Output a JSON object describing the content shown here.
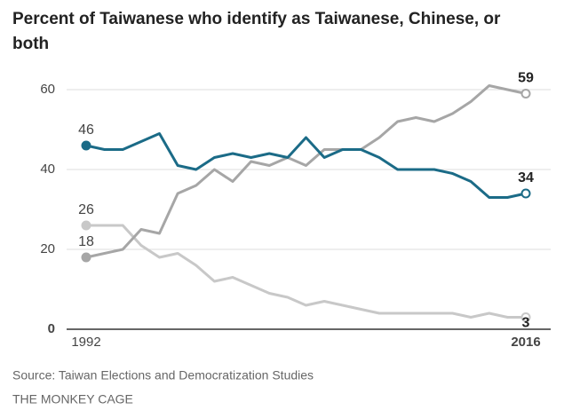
{
  "chart_data": {
    "type": "line",
    "title": [
      "Percent of Taiwanese who identify as Taiwanese, Chinese, or",
      "both"
    ],
    "x": [
      1992,
      1993,
      1994,
      1995,
      1996,
      1997,
      1998,
      1999,
      2000,
      2001,
      2002,
      2003,
      2004,
      2005,
      2006,
      2007,
      2008,
      2009,
      2010,
      2011,
      2012,
      2013,
      2014,
      2015,
      2016
    ],
    "series": [
      {
        "color": "#c8c8c8",
        "values": [
          26,
          26,
          26,
          21,
          18,
          19,
          16,
          12,
          13,
          11,
          9,
          8,
          6,
          7,
          6,
          5,
          4,
          4,
          4,
          4,
          4,
          3,
          4,
          3,
          3
        ]
      },
      {
        "color": "#a6a6a6",
        "values": [
          18,
          19,
          20,
          25,
          24,
          34,
          36,
          40,
          37,
          42,
          41,
          43,
          41,
          45,
          45,
          45,
          48,
          52,
          53,
          52,
          54,
          57,
          61,
          60,
          59
        ]
      },
      {
        "color": "#1b6b87",
        "values": [
          46,
          45,
          45,
          47,
          49,
          41,
          40,
          43,
          44,
          43,
          44,
          43,
          48,
          43,
          45,
          45,
          43,
          40,
          40,
          40,
          39,
          37,
          33,
          33,
          34
        ]
      }
    ],
    "xlim": [
      1992,
      2016
    ],
    "xticks": [
      1992,
      2016
    ],
    "ylim": [
      0,
      60
    ],
    "yticks": [
      0,
      20,
      40,
      60
    ],
    "grid": true,
    "source": "Source: Taiwan Elections and Democratization Studies",
    "credit": "THE MONKEY CAGE"
  }
}
